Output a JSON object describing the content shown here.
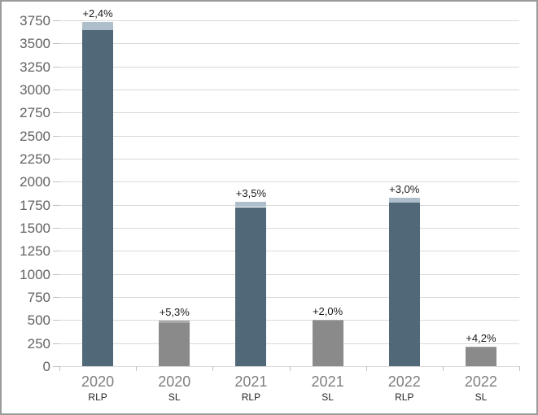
{
  "chart_data": {
    "type": "bar",
    "variant": "stacked",
    "title": "",
    "xlabel": "",
    "ylabel": "",
    "grid": true,
    "legend": "none",
    "ylim": [
      0,
      3750
    ],
    "ytick_step": 250,
    "ytick_labels": [
      "0",
      "250",
      "500",
      "750",
      "1000",
      "1250",
      "1500",
      "1750",
      "2000",
      "2250",
      "2500",
      "2750",
      "3000",
      "3250",
      "3500",
      "3750"
    ],
    "categories": [
      "2020 RLP",
      "2020 SL",
      "2021 RLP",
      "2021 SL",
      "2022 RLP",
      "2022 SL"
    ],
    "bars": [
      {
        "year": "2020",
        "group": "RLP",
        "previous": 3643,
        "growth": 87,
        "total": 3730,
        "growth_label": "+2,4%"
      },
      {
        "year": "2020",
        "group": "SL",
        "previous": 465,
        "growth": 25,
        "total": 490,
        "growth_label": "+5,3%"
      },
      {
        "year": "2021",
        "group": "RLP",
        "previous": 1725,
        "growth": 60,
        "total": 1785,
        "growth_label": "+3,5%"
      },
      {
        "year": "2021",
        "group": "SL",
        "previous": 490,
        "growth": 10,
        "total": 500,
        "growth_label": "+2,0%"
      },
      {
        "year": "2022",
        "group": "RLP",
        "previous": 1772,
        "growth": 53,
        "total": 1825,
        "growth_label": "+3,0%"
      },
      {
        "year": "2022",
        "group": "SL",
        "previous": 206,
        "growth": 9,
        "total": 215,
        "growth_label": "+4,2%"
      }
    ],
    "colors": {
      "rlp_bar": "#506878",
      "rlp_growth_cap": "#aebfcb",
      "sl_bar": "#8a8a8a",
      "sl_growth_cap": "#a9a9a9",
      "gridline": "#d9d9d9",
      "tick": "#c0c0c0",
      "ytick_label": "#636363",
      "year_label": "#7f7f7f",
      "group_label": "#262626",
      "pct_label": "#1a1a1a",
      "frame_border": "#9b9b9b"
    }
  }
}
